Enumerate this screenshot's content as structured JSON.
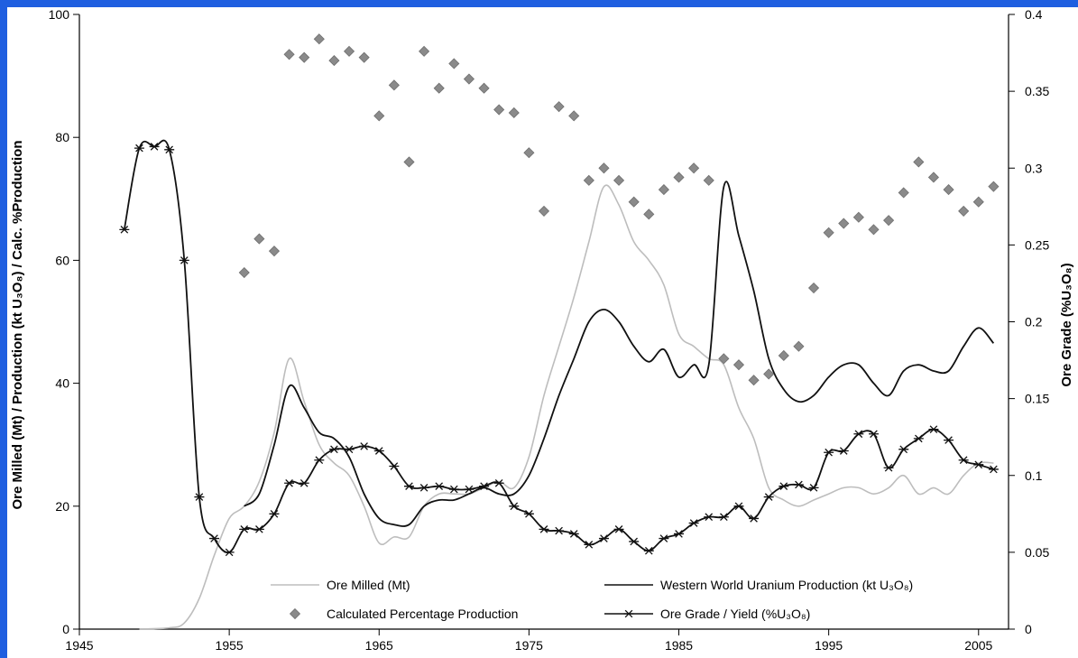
{
  "chart_data": {
    "type": "line",
    "xlim": [
      1945,
      2007
    ],
    "y_left": {
      "label": "Ore Milled (Mt) / Production (kt U₃O₈) / Calc. %Production",
      "lim": [
        0,
        100
      ],
      "ticks": [
        0,
        20,
        40,
        60,
        80,
        100
      ]
    },
    "y_right": {
      "label": "Ore Grade (%U₃O₈)",
      "lim": [
        0,
        0.4
      ],
      "ticks": [
        "0",
        "0.05",
        "0.1",
        "0.15",
        "0.2",
        "0.25",
        "0.3",
        "0.35",
        "0.4"
      ]
    },
    "x_ticks": [
      1945,
      1955,
      1965,
      1975,
      1985,
      1995,
      2005
    ],
    "grid": false,
    "legend_position": "bottom-center",
    "series": [
      {
        "name": "Ore Milled (Mt)",
        "style": "line",
        "color": "#bdbdbd",
        "axis": "left",
        "points": [
          [
            1949,
            0
          ],
          [
            1951,
            0.2
          ],
          [
            1952,
            1
          ],
          [
            1953,
            5
          ],
          [
            1954,
            12
          ],
          [
            1955,
            18
          ],
          [
            1956,
            20
          ],
          [
            1957,
            24
          ],
          [
            1958,
            32
          ],
          [
            1959,
            44
          ],
          [
            1960,
            37
          ],
          [
            1961,
            30
          ],
          [
            1962,
            27
          ],
          [
            1963,
            25
          ],
          [
            1964,
            20
          ],
          [
            1965,
            14
          ],
          [
            1966,
            15
          ],
          [
            1967,
            15
          ],
          [
            1968,
            20
          ],
          [
            1969,
            22
          ],
          [
            1970,
            22
          ],
          [
            1971,
            22
          ],
          [
            1972,
            23
          ],
          [
            1973,
            24
          ],
          [
            1974,
            23
          ],
          [
            1975,
            28
          ],
          [
            1976,
            38
          ],
          [
            1977,
            46
          ],
          [
            1978,
            54
          ],
          [
            1979,
            63
          ],
          [
            1980,
            72
          ],
          [
            1981,
            69
          ],
          [
            1982,
            63
          ],
          [
            1983,
            60
          ],
          [
            1984,
            56
          ],
          [
            1985,
            48
          ],
          [
            1986,
            46
          ],
          [
            1987,
            44
          ],
          [
            1988,
            43
          ],
          [
            1989,
            36
          ],
          [
            1990,
            31
          ],
          [
            1991,
            23
          ],
          [
            1992,
            21
          ],
          [
            1993,
            20
          ],
          [
            1994,
            21
          ],
          [
            1995,
            22
          ],
          [
            1996,
            23
          ],
          [
            1997,
            23
          ],
          [
            1998,
            22
          ],
          [
            1999,
            23
          ],
          [
            2000,
            25
          ],
          [
            2001,
            22
          ],
          [
            2002,
            23
          ],
          [
            2003,
            22
          ],
          [
            2004,
            25
          ],
          [
            2005,
            27
          ],
          [
            2006,
            27
          ]
        ]
      },
      {
        "name": "Western World Uranium Production (kt U₃O₈)",
        "style": "line",
        "color": "#111111",
        "axis": "left",
        "points": [
          [
            1956,
            20
          ],
          [
            1957,
            22
          ],
          [
            1958,
            30
          ],
          [
            1959,
            39.5
          ],
          [
            1960,
            36
          ],
          [
            1961,
            32
          ],
          [
            1962,
            31
          ],
          [
            1963,
            28
          ],
          [
            1964,
            22
          ],
          [
            1965,
            18
          ],
          [
            1966,
            17
          ],
          [
            1967,
            17
          ],
          [
            1968,
            20
          ],
          [
            1969,
            21
          ],
          [
            1970,
            21
          ],
          [
            1971,
            22
          ],
          [
            1972,
            23
          ],
          [
            1973,
            22
          ],
          [
            1974,
            22
          ],
          [
            1975,
            25
          ],
          [
            1976,
            31
          ],
          [
            1977,
            38
          ],
          [
            1978,
            44
          ],
          [
            1979,
            50
          ],
          [
            1980,
            52
          ],
          [
            1981,
            50
          ],
          [
            1982,
            46
          ],
          [
            1983,
            43.5
          ],
          [
            1984,
            45.5
          ],
          [
            1985,
            41
          ],
          [
            1986,
            43
          ],
          [
            1987,
            43
          ],
          [
            1988,
            72
          ],
          [
            1989,
            64
          ],
          [
            1990,
            55
          ],
          [
            1991,
            44
          ],
          [
            1992,
            39
          ],
          [
            1993,
            37
          ],
          [
            1994,
            38
          ],
          [
            1995,
            41
          ],
          [
            1996,
            43
          ],
          [
            1997,
            43
          ],
          [
            1998,
            40
          ],
          [
            1999,
            38
          ],
          [
            2000,
            42
          ],
          [
            2001,
            43
          ],
          [
            2002,
            42
          ],
          [
            2003,
            42
          ],
          [
            2004,
            46
          ],
          [
            2005,
            49
          ],
          [
            2006,
            46.5
          ]
        ]
      },
      {
        "name": "Calculated Percentage Production",
        "style": "markers",
        "marker": "diamond",
        "color": "#8a8a8a",
        "axis": "left",
        "points": [
          [
            1956,
            58
          ],
          [
            1957,
            63.5
          ],
          [
            1958,
            61.5
          ],
          [
            1959,
            93.5
          ],
          [
            1960,
            93
          ],
          [
            1961,
            96
          ],
          [
            1962,
            92.5
          ],
          [
            1963,
            94
          ],
          [
            1964,
            93
          ],
          [
            1965,
            83.5
          ],
          [
            1966,
            88.5
          ],
          [
            1967,
            76
          ],
          [
            1968,
            94
          ],
          [
            1969,
            88
          ],
          [
            1970,
            92
          ],
          [
            1971,
            89.5
          ],
          [
            1972,
            88
          ],
          [
            1973,
            84.5
          ],
          [
            1974,
            84
          ],
          [
            1975,
            77.5
          ],
          [
            1976,
            68
          ],
          [
            1977,
            85
          ],
          [
            1978,
            83.5
          ],
          [
            1979,
            73
          ],
          [
            1980,
            75
          ],
          [
            1981,
            73
          ],
          [
            1982,
            69.5
          ],
          [
            1983,
            67.5
          ],
          [
            1984,
            71.5
          ],
          [
            1985,
            73.5
          ],
          [
            1986,
            75
          ],
          [
            1987,
            73
          ],
          [
            1988,
            44
          ],
          [
            1989,
            43
          ],
          [
            1990,
            40.5
          ],
          [
            1991,
            41.5
          ],
          [
            1992,
            44.5
          ],
          [
            1993,
            46
          ],
          [
            1994,
            55.5
          ],
          [
            1995,
            64.5
          ],
          [
            1996,
            66
          ],
          [
            1997,
            67
          ],
          [
            1998,
            65
          ],
          [
            1999,
            66.5
          ],
          [
            2000,
            71
          ],
          [
            2001,
            76
          ],
          [
            2002,
            73.5
          ],
          [
            2003,
            71.5
          ],
          [
            2004,
            68
          ],
          [
            2005,
            69.5
          ],
          [
            2006,
            72
          ]
        ]
      },
      {
        "name": "Ore Grade / Yield (%U₃O₈)",
        "style": "line+markers",
        "marker": "asterisk",
        "color": "#111111",
        "axis": "right",
        "points": [
          [
            1948,
            0.26
          ],
          [
            1949,
            0.313
          ],
          [
            1950,
            0.314
          ],
          [
            1951,
            0.312
          ],
          [
            1952,
            0.24
          ],
          [
            1953,
            0.086
          ],
          [
            1954,
            0.059
          ],
          [
            1955,
            0.05
          ],
          [
            1956,
            0.065
          ],
          [
            1957,
            0.065
          ],
          [
            1958,
            0.075
          ],
          [
            1959,
            0.095
          ],
          [
            1960,
            0.095
          ],
          [
            1961,
            0.11
          ],
          [
            1962,
            0.117
          ],
          [
            1963,
            0.117
          ],
          [
            1964,
            0.119
          ],
          [
            1965,
            0.116
          ],
          [
            1966,
            0.106
          ],
          [
            1967,
            0.093
          ],
          [
            1968,
            0.092
          ],
          [
            1969,
            0.093
          ],
          [
            1970,
            0.091
          ],
          [
            1971,
            0.091
          ],
          [
            1972,
            0.093
          ],
          [
            1973,
            0.095
          ],
          [
            1974,
            0.08
          ],
          [
            1975,
            0.075
          ],
          [
            1976,
            0.065
          ],
          [
            1977,
            0.064
          ],
          [
            1978,
            0.062
          ],
          [
            1979,
            0.055
          ],
          [
            1980,
            0.059
          ],
          [
            1981,
            0.065
          ],
          [
            1982,
            0.057
          ],
          [
            1983,
            0.051
          ],
          [
            1984,
            0.059
          ],
          [
            1985,
            0.062
          ],
          [
            1986,
            0.069
          ],
          [
            1987,
            0.073
          ],
          [
            1988,
            0.073
          ],
          [
            1989,
            0.08
          ],
          [
            1990,
            0.072
          ],
          [
            1991,
            0.086
          ],
          [
            1992,
            0.093
          ],
          [
            1993,
            0.094
          ],
          [
            1994,
            0.092
          ],
          [
            1995,
            0.115
          ],
          [
            1996,
            0.116
          ],
          [
            1997,
            0.127
          ],
          [
            1998,
            0.127
          ],
          [
            1999,
            0.105
          ],
          [
            2000,
            0.117
          ],
          [
            2001,
            0.124
          ],
          [
            2002,
            0.13
          ],
          [
            2003,
            0.123
          ],
          [
            2004,
            0.11
          ],
          [
            2005,
            0.107
          ],
          [
            2006,
            0.104
          ]
        ]
      }
    ]
  }
}
